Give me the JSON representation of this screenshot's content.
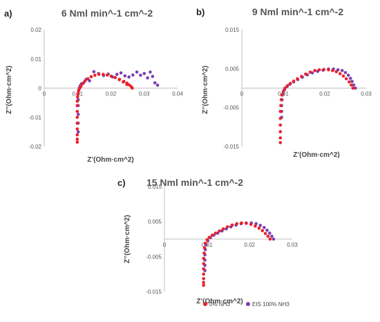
{
  "colors": {
    "series_0": "#e8232b",
    "series_1": "#7b3fb0"
  },
  "legend": {
    "items": [
      {
        "label": "0% NH3",
        "color": "#e8232b"
      },
      {
        "label": "EIS 100% NH3",
        "color": "#7b3fb0"
      }
    ],
    "position": "bottom-center"
  },
  "chart_data": [
    {
      "type": "scatter",
      "panel_label": "a)",
      "title": "6 Nml min^-1 cm^-2",
      "xlabel": "Z’(Ohm·cm^2)",
      "ylabel": "Z’’(Ohm·cm^2)",
      "xlim": [
        0,
        0.04
      ],
      "ylim": [
        -0.02,
        0.02
      ],
      "xticks": [
        {
          "v": 0,
          "label": "0"
        },
        {
          "v": 0.01,
          "label": "0.01"
        },
        {
          "v": 0.02,
          "label": "0.02"
        },
        {
          "v": 0.03,
          "label": "0.03"
        },
        {
          "v": 0.04,
          "label": "0.04"
        }
      ],
      "yticks": [
        {
          "v": 0.02,
          "label": "0.02"
        },
        {
          "v": 0.01,
          "label": "0.01"
        },
        {
          "v": 0,
          "label": "0"
        },
        {
          "v": -0.01,
          "label": "-0.01"
        },
        {
          "v": -0.02,
          "label": "-0.02"
        }
      ],
      "series": [
        {
          "name": "0% NH3",
          "x": [
            0.0226,
            0.0239,
            0.0248,
            0.0255,
            0.0261,
            0.0264,
            0.0248,
            0.0237,
            0.0225,
            0.0213,
            0.0201,
            0.0189,
            0.0177,
            0.0164,
            0.0152,
            0.0141,
            0.0131,
            0.0122,
            0.0115,
            0.011,
            0.0106,
            0.0103,
            0.0101,
            0.01,
            0.0099,
            0.0099,
            0.0099,
            0.0099,
            0.0099,
            0.0099,
            0.0099,
            0.0099,
            0.0099
          ],
          "y": [
            0.003,
            0.0023,
            0.0017,
            0.0011,
            0.0005,
            0.0,
            0.0012,
            0.0021,
            0.0029,
            0.0036,
            0.0041,
            0.0045,
            0.0047,
            0.0047,
            0.0044,
            0.0039,
            0.0032,
            0.0024,
            0.0015,
            0.0006,
            -0.0002,
            -0.001,
            -0.002,
            -0.003,
            -0.0045,
            -0.006,
            -0.008,
            -0.01,
            -0.012,
            -0.014,
            -0.016,
            -0.0175,
            -0.0185
          ]
        },
        {
          "name": "EIS 100% NH3",
          "x": [
            0.034,
            0.0332,
            0.0325,
            0.0318,
            0.031,
            0.03,
            0.0289,
            0.0278,
            0.0266,
            0.0254,
            0.0242,
            0.023,
            0.0218,
            0.0205,
            0.0192,
            0.0178,
            0.0163,
            0.0149,
            0.0136,
            0.0126,
            0.0118,
            0.0112,
            0.0108,
            0.0105,
            0.0103,
            0.0102,
            0.0102,
            0.0102,
            0.0102,
            0.0102,
            0.0102
          ],
          "y": [
            0.001,
            0.0018,
            0.004,
            0.0055,
            0.0035,
            0.005,
            0.0044,
            0.0055,
            0.0045,
            0.0038,
            0.0042,
            0.0052,
            0.0047,
            0.0038,
            0.0048,
            0.0043,
            0.005,
            0.0056,
            0.0025,
            0.003,
            0.0018,
            0.0015,
            0.0008,
            0.0,
            -0.0008,
            -0.002,
            -0.004,
            -0.006,
            -0.009,
            -0.012,
            -0.015
          ]
        }
      ]
    },
    {
      "type": "scatter",
      "panel_label": "b)",
      "title": "9 Nml min^-1 cm^-2",
      "xlabel": "Z’(Ohm·cm^2)",
      "ylabel": "Z’’(Ohm·cm^2)",
      "xlim": [
        0,
        0.03
      ],
      "ylim": [
        -0.015,
        0.015
      ],
      "xticks": [
        {
          "v": 0,
          "label": "0"
        },
        {
          "v": 0.01,
          "label": "0.01"
        },
        {
          "v": 0.02,
          "label": "0.02"
        },
        {
          "v": 0.03,
          "label": "0.03"
        }
      ],
      "yticks": [
        {
          "v": 0.015,
          "label": "0.015"
        },
        {
          "v": 0.005,
          "label": "0.005"
        },
        {
          "v": -0.005,
          "label": "-0.005"
        },
        {
          "v": -0.015,
          "label": "-0.015"
        }
      ],
      "series": [
        {
          "name": "0% NH3",
          "x": [
            0.0268,
            0.0264,
            0.0259,
            0.0252,
            0.0245,
            0.0237,
            0.0228,
            0.0219,
            0.0209,
            0.0198,
            0.0187,
            0.0176,
            0.0165,
            0.0154,
            0.0144,
            0.0134,
            0.0125,
            0.0117,
            0.011,
            0.0104,
            0.01,
            0.0097,
            0.0095,
            0.0094,
            0.0093,
            0.0093,
            0.0093,
            0.0093,
            0.0093,
            0.0093
          ],
          "y": [
            0.0,
            0.0008,
            0.0016,
            0.0024,
            0.0031,
            0.0037,
            0.0042,
            0.0045,
            0.0047,
            0.0048,
            0.0047,
            0.0045,
            0.0041,
            0.0036,
            0.003,
            0.0024,
            0.0018,
            0.0012,
            0.0006,
            0.0,
            -0.0008,
            -0.0018,
            -0.003,
            -0.0045,
            -0.006,
            -0.0078,
            -0.0095,
            -0.0112,
            -0.0128,
            -0.014
          ]
        },
        {
          "name": "EIS 100% NH3",
          "x": [
            0.0274,
            0.027,
            0.0266,
            0.0262,
            0.0257,
            0.025,
            0.0242,
            0.0232,
            0.0221,
            0.0209,
            0.0196,
            0.0183,
            0.017,
            0.0158,
            0.0146,
            0.0135,
            0.0125,
            0.0116,
            0.0109,
            0.0103,
            0.0099,
            0.0097,
            0.0096,
            0.0096,
            0.0096
          ],
          "y": [
            0.0,
            0.0008,
            0.0017,
            0.0025,
            0.0033,
            0.004,
            0.0045,
            0.0047,
            0.0049,
            0.0049,
            0.0046,
            0.0043,
            0.0039,
            0.0034,
            0.0028,
            0.0022,
            0.0016,
            0.001,
            0.0004,
            -0.0004,
            -0.0015,
            -0.003,
            -0.0045,
            -0.006,
            -0.0075
          ]
        }
      ]
    },
    {
      "type": "scatter",
      "panel_label": "c)",
      "title": "15 Nml min^-1 cm^-2",
      "xlabel": "Z’(Ohm·cm^2)",
      "ylabel": "Z’’(Ohm·cm^2)",
      "xlim": [
        0,
        0.03
      ],
      "ylim": [
        -0.015,
        0.015
      ],
      "xticks": [
        {
          "v": 0,
          "label": "0"
        },
        {
          "v": 0.01,
          "label": "0.01"
        },
        {
          "v": 0.02,
          "label": "0.02"
        },
        {
          "v": 0.03,
          "label": "0.03"
        }
      ],
      "yticks": [
        {
          "v": 0.015,
          "label": "0.015"
        },
        {
          "v": 0.005,
          "label": "0.005"
        },
        {
          "v": -0.005,
          "label": "-0.005"
        },
        {
          "v": -0.015,
          "label": "-0.015"
        }
      ],
      "series": [
        {
          "name": "0% NH3",
          "x": [
            0.0248,
            0.0243,
            0.0237,
            0.023,
            0.0222,
            0.0213,
            0.0203,
            0.0192,
            0.0181,
            0.017,
            0.0159,
            0.0148,
            0.0138,
            0.0129,
            0.012,
            0.0112,
            0.0105,
            0.01,
            0.0096,
            0.0094,
            0.0093,
            0.0092,
            0.0092,
            0.0092,
            0.0092,
            0.0092,
            0.0092,
            0.0092
          ],
          "y": [
            0.0,
            0.0008,
            0.0016,
            0.0024,
            0.0031,
            0.0037,
            0.0042,
            0.0045,
            0.0046,
            0.0044,
            0.004,
            0.0035,
            0.0029,
            0.0023,
            0.0017,
            0.0011,
            0.0005,
            -0.0002,
            -0.0012,
            -0.0025,
            -0.004,
            -0.0055,
            -0.007,
            -0.0085,
            -0.01,
            -0.0113,
            -0.0124,
            -0.0132
          ]
        },
        {
          "name": "EIS 100% NH3",
          "x": [
            0.0256,
            0.0252,
            0.0247,
            0.0241,
            0.0234,
            0.0225,
            0.0215,
            0.0204,
            0.0192,
            0.018,
            0.0168,
            0.0156,
            0.0145,
            0.0135,
            0.0125,
            0.0116,
            0.0108,
            0.0102,
            0.0098,
            0.0096,
            0.0095,
            0.0095,
            0.0095,
            0.0095
          ],
          "y": [
            0.0,
            0.0008,
            0.0017,
            0.0025,
            0.0033,
            0.0039,
            0.0044,
            0.0046,
            0.0046,
            0.0044,
            0.004,
            0.0035,
            0.0029,
            0.0023,
            0.0017,
            0.0011,
            0.0004,
            -0.0005,
            -0.0016,
            -0.003,
            -0.0045,
            -0.006,
            -0.0075,
            -0.009
          ]
        }
      ]
    }
  ]
}
